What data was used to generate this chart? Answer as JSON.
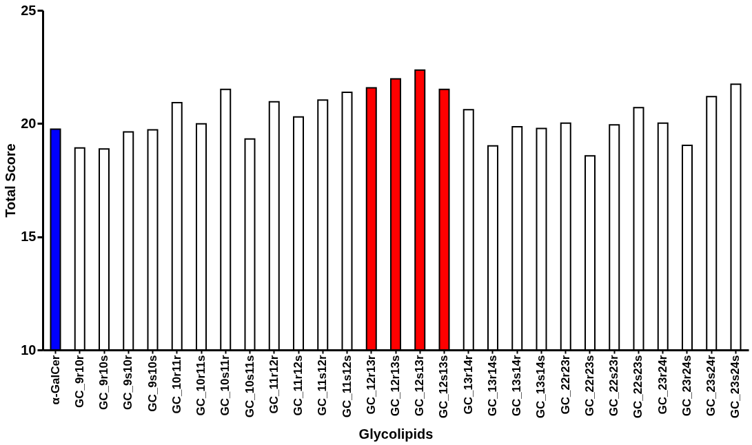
{
  "chart_data": {
    "type": "bar",
    "xlabel": "Glycolipids",
    "ylabel": "Total Score",
    "categories": [
      "α-GalCer",
      "GC_9r10r",
      "GC_9r10s",
      "GC_9s10r",
      "GC_9s10s",
      "GC_10r11r",
      "GC_10r11s",
      "GC_10s11r",
      "GC_10s11s",
      "GC_11r12r",
      "GC_11r12s",
      "GC_11s12r",
      "GC_11s12s",
      "GC_12r13r",
      "GC_12r13s",
      "GC_12s13r",
      "GC_12s13s",
      "GC_13r14r",
      "GC_13r14s",
      "GC_13s14r",
      "GC_13s14s",
      "GC_22r23r",
      "GC_22r23s",
      "GC_22s23r",
      "GC_22s23s",
      "GC_23r24r",
      "GC_23r24s",
      "GC_23s24r",
      "GC_23s24s"
    ],
    "values": [
      19.75,
      18.92,
      18.88,
      19.63,
      19.72,
      20.92,
      19.99,
      21.51,
      19.32,
      20.96,
      20.29,
      21.04,
      21.38,
      21.58,
      21.97,
      22.36,
      21.51,
      20.61,
      19.01,
      19.86,
      19.78,
      20.02,
      18.57,
      19.94,
      20.7,
      20.02,
      19.04,
      21.19,
      21.74
    ],
    "colors": [
      "#0000ff",
      "#ffffff",
      "#ffffff",
      "#ffffff",
      "#ffffff",
      "#ffffff",
      "#ffffff",
      "#ffffff",
      "#ffffff",
      "#ffffff",
      "#ffffff",
      "#ffffff",
      "#ffffff",
      "#ff0000",
      "#ff0000",
      "#ff0000",
      "#ff0000",
      "#ffffff",
      "#ffffff",
      "#ffffff",
      "#ffffff",
      "#ffffff",
      "#ffffff",
      "#ffffff",
      "#ffffff",
      "#ffffff",
      "#ffffff",
      "#ffffff",
      "#ffffff"
    ],
    "ylim": [
      10,
      25
    ],
    "yticks": [
      10,
      15,
      20,
      25
    ]
  }
}
